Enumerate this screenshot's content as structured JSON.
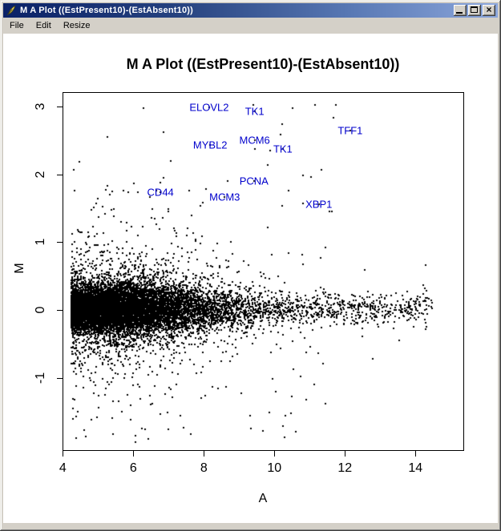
{
  "window": {
    "title": "M A Plot ((EstPresent10)-(EstAbsent10))",
    "menu": [
      "File",
      "Edit",
      "Resize"
    ]
  },
  "icons": {
    "window": "feather-quill",
    "minimize": "underscore-bar",
    "maximize": "square-outline",
    "close": "×"
  },
  "colors": {
    "titlebar_gradient_left": "#0A2167",
    "titlebar_gradient_right": "#8BA6DB",
    "chrome": "#D4D0C8",
    "client_bg": "#FFFFFF",
    "point": "#000000",
    "gene_label": "#0000CC"
  },
  "chart_data": {
    "type": "scatter",
    "title": "M A Plot ((EstPresent10)-(EstAbsent10))",
    "xlabel": "A",
    "ylabel": "M",
    "x_ticks": [
      4,
      6,
      8,
      10,
      12,
      14
    ],
    "y_ticks": [
      3,
      2,
      1,
      0,
      -1
    ],
    "xlim": [
      4,
      15.4
    ],
    "ylim": [
      -2.07,
      3.2
    ],
    "grid": false,
    "legend": "none",
    "labeled_points": [
      {
        "name": "ELOVL2",
        "a": 8.15,
        "m": 2.98
      },
      {
        "name": "TK1",
        "a": 9.44,
        "m": 2.93
      },
      {
        "name": "TFF1",
        "a": 12.15,
        "m": 2.64
      },
      {
        "name": "MCM6",
        "a": 9.44,
        "m": 2.5
      },
      {
        "name": "MYBL2",
        "a": 8.18,
        "m": 2.43
      },
      {
        "name": "TK1",
        "a": 10.24,
        "m": 2.37
      },
      {
        "name": "PCNA",
        "a": 9.42,
        "m": 1.9
      },
      {
        "name": "CD44",
        "a": 6.77,
        "m": 1.73
      },
      {
        "name": "MCM3",
        "a": 8.59,
        "m": 1.67
      },
      {
        "name": "XBP1",
        "a": 11.26,
        "m": 1.56
      }
    ],
    "cloud": {
      "note": "Dense MA-plot cloud of ~11500 unlabeled probes centered on M=0; A mass concentrated 4.3-9.5 with sparse tail to 14.7; M mostly within ±0.4 with heavy tails to -2.0 and +3.1",
      "seed": 7,
      "n": 11500,
      "center_m": 0.02,
      "extra_upper_outliers": 30,
      "extra_lower_outliers": 22,
      "a_range": [
        4.25,
        14.7
      ],
      "m_range": [
        -2.0,
        3.1
      ]
    }
  }
}
